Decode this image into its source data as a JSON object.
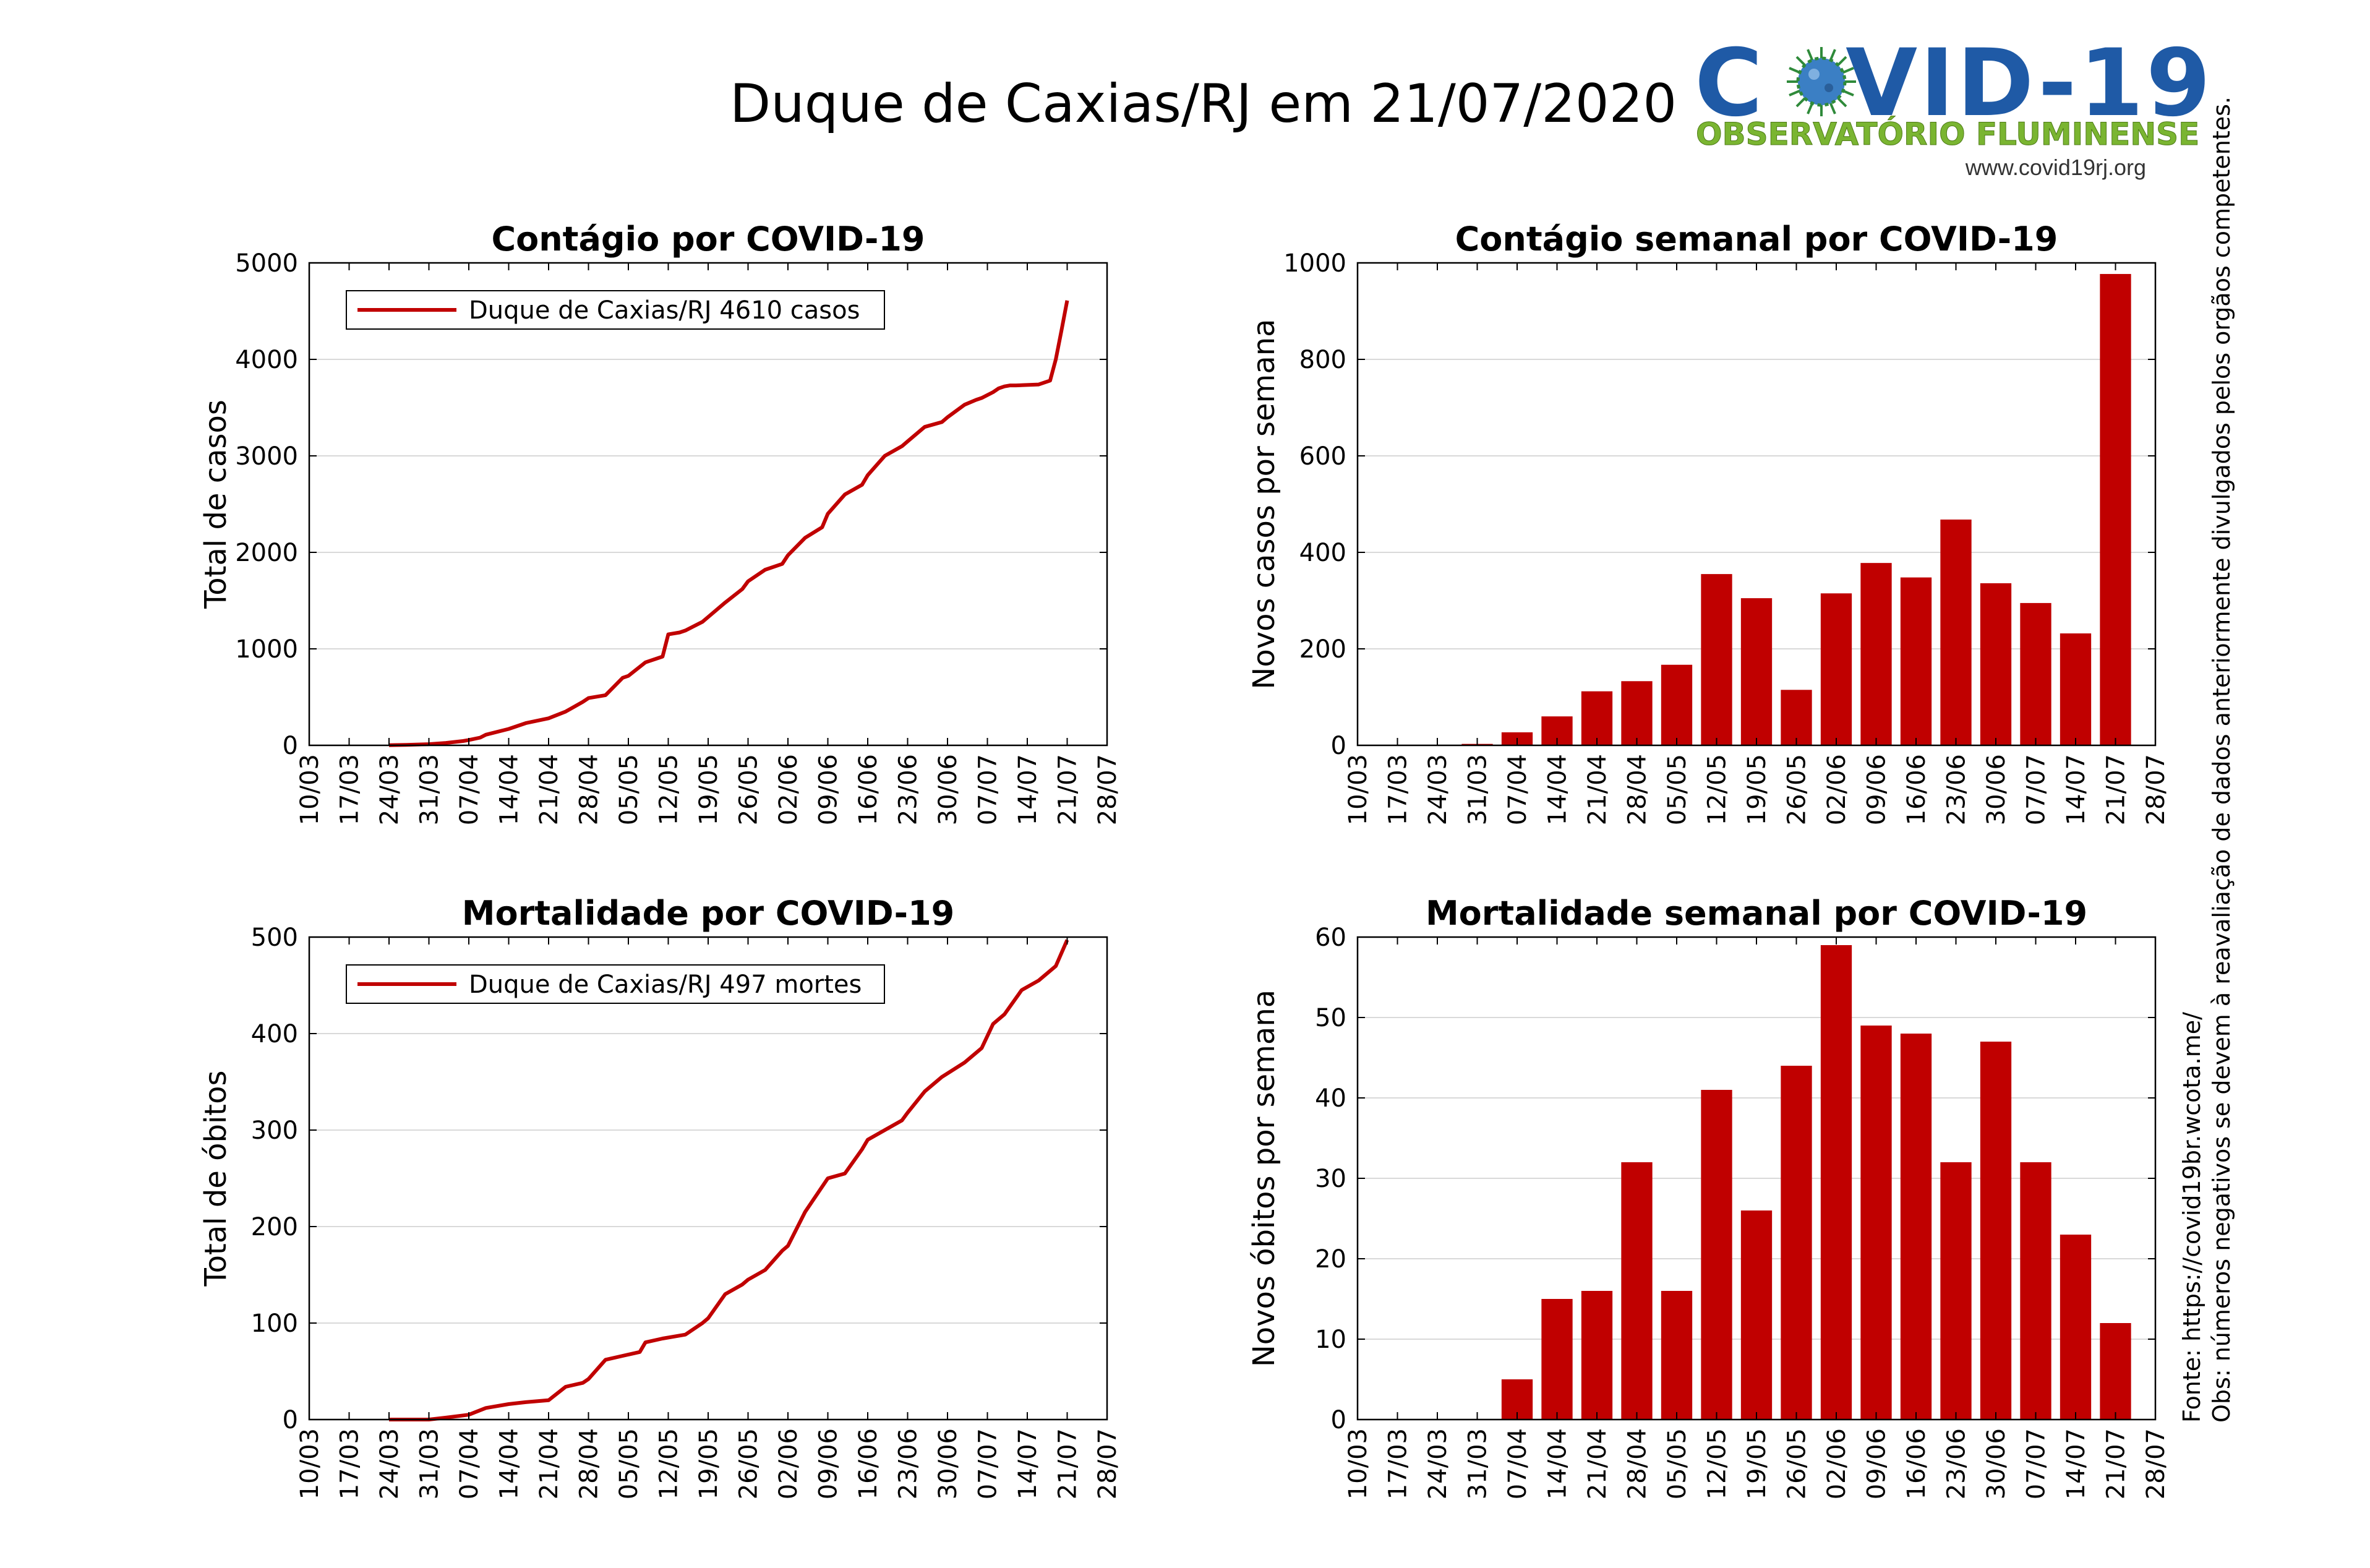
{
  "page": {
    "title": "Duque de Caxias/RJ em 21/07/2020"
  },
  "logo": {
    "title_left": "C",
    "title_right": "VID-19",
    "subtitle": "OBSERVATÓRIO FLUMINENSE",
    "url": "www.covid19rj.org",
    "icon": "virus-icon"
  },
  "side_note": {
    "line1": "Fonte: https://covid19br.wcota.me/",
    "line2": "Obs: números negativos se devem à reavaliação de dados anteriormente divulgados pelos orgãos competentes."
  },
  "colors": {
    "series": "#c00000",
    "grid": "#d9d9d9",
    "axis": "#000000"
  },
  "x_ticks": [
    "10/03",
    "17/03",
    "24/03",
    "31/03",
    "07/04",
    "14/04",
    "21/04",
    "28/04",
    "05/05",
    "12/05",
    "19/05",
    "26/05",
    "02/06",
    "09/06",
    "16/06",
    "23/06",
    "30/06",
    "07/07",
    "14/07",
    "21/07",
    "28/07"
  ],
  "chart_data": [
    {
      "id": "cases-total",
      "type": "line",
      "title": "Contágio por COVID-19",
      "ylabel": "Total de casos",
      "xlabel": "",
      "ylim": [
        0,
        5000
      ],
      "yticks": [
        0,
        1000,
        2000,
        3000,
        4000,
        5000
      ],
      "grid": true,
      "legend": "top-left",
      "series": [
        {
          "name": "Duque de Caxias/RJ  4610 casos",
          "x_days": [
            14,
            17,
            21,
            24,
            27,
            28,
            30,
            31,
            35,
            38,
            42,
            45,
            48,
            49,
            52,
            55,
            56,
            59,
            62,
            63,
            65,
            66,
            69,
            70,
            73,
            76,
            77,
            80,
            83,
            84,
            87,
            90,
            91,
            94,
            97,
            98,
            101,
            104,
            105,
            108,
            111,
            112,
            115,
            117,
            118,
            120,
            121,
            122,
            123,
            124,
            128,
            129,
            130,
            131,
            132,
            133
          ],
          "y": [
            1,
            5,
            12,
            25,
            45,
            55,
            80,
            110,
            170,
            230,
            280,
            350,
            450,
            490,
            520,
            700,
            720,
            860,
            920,
            1150,
            1170,
            1190,
            1280,
            1330,
            1480,
            1620,
            1700,
            1820,
            1880,
            1970,
            2150,
            2260,
            2400,
            2600,
            2700,
            2800,
            3000,
            3100,
            3150,
            3300,
            3350,
            3400,
            3530,
            3580,
            3600,
            3660,
            3700,
            3720,
            3730,
            3730,
            3740,
            3760,
            3780,
            4000,
            4300,
            4610
          ]
        }
      ]
    },
    {
      "id": "cases-weekly",
      "type": "bar",
      "title": "Contágio semanal por COVID-19",
      "ylabel": "Novos casos por semana",
      "xlabel": "",
      "ylim": [
        0,
        1000
      ],
      "yticks": [
        0,
        200,
        400,
        600,
        800,
        1000
      ],
      "grid": true,
      "categories": [
        "17/03",
        "24/03",
        "31/03",
        "07/04",
        "14/04",
        "21/04",
        "28/04",
        "05/05",
        "12/05",
        "19/05",
        "26/05",
        "02/06",
        "09/06",
        "16/06",
        "23/06",
        "30/06",
        "07/07",
        "14/07",
        "21/07"
      ],
      "values": [
        0,
        0,
        3,
        27,
        60,
        112,
        133,
        167,
        355,
        305,
        115,
        315,
        378,
        348,
        468,
        336,
        295,
        232,
        977
      ]
    },
    {
      "id": "deaths-total",
      "type": "line",
      "title": "Mortalidade por COVID-19",
      "ylabel": "Total de óbitos",
      "xlabel": "",
      "ylim": [
        0,
        500
      ],
      "yticks": [
        0,
        100,
        200,
        300,
        400,
        500
      ],
      "grid": true,
      "legend": "top-left",
      "series": [
        {
          "name": "Duque de Caxias/RJ  497 mortes",
          "x_days": [
            14,
            21,
            24,
            28,
            31,
            35,
            38,
            42,
            45,
            48,
            49,
            52,
            55,
            58,
            59,
            62,
            66,
            69,
            70,
            73,
            76,
            77,
            80,
            83,
            84,
            87,
            91,
            94,
            97,
            98,
            101,
            104,
            105,
            108,
            111,
            115,
            118,
            120,
            122,
            125,
            128,
            131,
            133
          ],
          "y": [
            0,
            0,
            2,
            5,
            12,
            16,
            18,
            20,
            34,
            38,
            42,
            62,
            66,
            70,
            80,
            84,
            88,
            100,
            105,
            130,
            140,
            145,
            155,
            175,
            180,
            215,
            250,
            255,
            280,
            290,
            300,
            310,
            318,
            340,
            355,
            370,
            385,
            410,
            420,
            445,
            455,
            470,
            497
          ]
        }
      ]
    },
    {
      "id": "deaths-weekly",
      "type": "bar",
      "title": "Mortalidade semanal por COVID-19",
      "ylabel": "Novos óbitos por semana",
      "xlabel": "",
      "ylim": [
        0,
        60
      ],
      "yticks": [
        0,
        10,
        20,
        30,
        40,
        50,
        60
      ],
      "grid": true,
      "categories": [
        "17/03",
        "24/03",
        "31/03",
        "07/04",
        "14/04",
        "21/04",
        "28/04",
        "05/05",
        "12/05",
        "19/05",
        "26/05",
        "02/06",
        "09/06",
        "16/06",
        "23/06",
        "30/06",
        "07/07",
        "14/07",
        "21/07"
      ],
      "values": [
        0,
        0,
        0,
        5,
        15,
        16,
        32,
        16,
        41,
        26,
        44,
        59,
        49,
        48,
        32,
        47,
        32,
        23,
        12
      ]
    }
  ]
}
